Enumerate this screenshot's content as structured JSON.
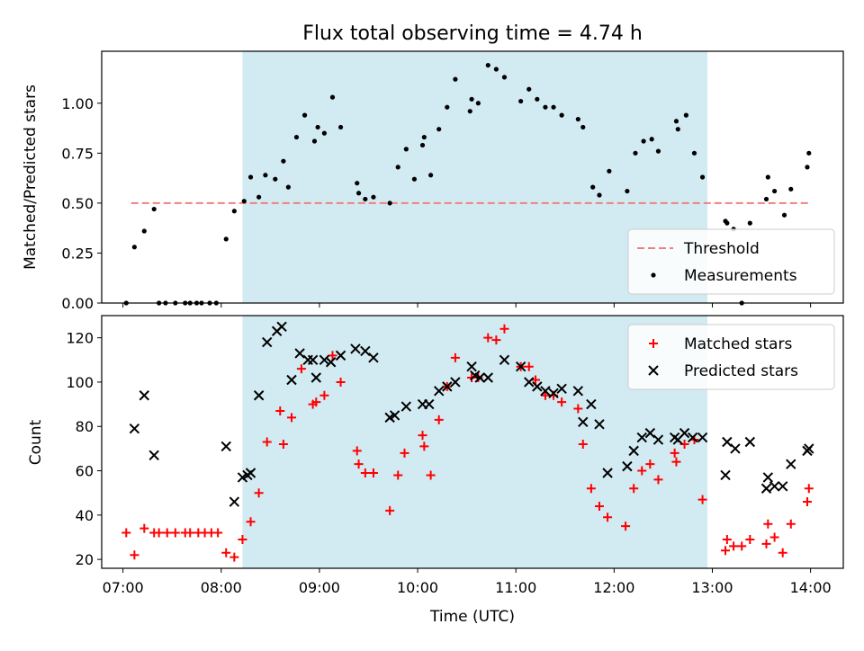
{
  "chart_data": [
    {
      "type": "scatter",
      "title": "Flux total observing time = 4.74 h",
      "ylabel": "Matched/Predicted stars",
      "xlabel": "",
      "xlim": [
        "06:47",
        "14:20"
      ],
      "ylim": [
        0,
        1.26
      ],
      "yticks": [
        "0.00",
        "0.25",
        "0.50",
        "0.75",
        "1.00"
      ],
      "highlight_span": {
        "start": "08:13",
        "end": "12:57",
        "color": "#add8e6"
      },
      "threshold": {
        "name": "Threshold",
        "y": 0.5,
        "x_start": "07:05",
        "x_end": "13:59",
        "color": "#f08080",
        "style": "dashed"
      },
      "legend_position": "lower right",
      "series": [
        {
          "name": "Measurements",
          "color": "#000000",
          "marker": "dot",
          "points": [
            [
              "07:02",
              0.0
            ],
            [
              "07:07",
              0.28
            ],
            [
              "07:13",
              0.36
            ],
            [
              "07:19",
              0.47
            ],
            [
              "07:22",
              0.0
            ],
            [
              "07:26",
              0.0
            ],
            [
              "07:32",
              0.0
            ],
            [
              "07:38",
              0.0
            ],
            [
              "07:41",
              0.0
            ],
            [
              "07:45",
              0.0
            ],
            [
              "07:48",
              0.0
            ],
            [
              "07:53",
              0.0
            ],
            [
              "07:57",
              0.0
            ],
            [
              "08:03",
              0.32
            ],
            [
              "08:08",
              0.46
            ],
            [
              "08:14",
              0.51
            ],
            [
              "08:18",
              0.63
            ],
            [
              "08:23",
              0.53
            ],
            [
              "08:27",
              0.64
            ],
            [
              "08:33",
              0.62
            ],
            [
              "08:38",
              0.71
            ],
            [
              "08:41",
              0.58
            ],
            [
              "08:46",
              0.83
            ],
            [
              "08:51",
              0.94
            ],
            [
              "08:57",
              0.81
            ],
            [
              "08:59",
              0.88
            ],
            [
              "09:03",
              0.85
            ],
            [
              "09:08",
              1.03
            ],
            [
              "09:13",
              0.88
            ],
            [
              "09:23",
              0.6
            ],
            [
              "09:24",
              0.55
            ],
            [
              "09:28",
              0.52
            ],
            [
              "09:33",
              0.53
            ],
            [
              "09:43",
              0.5
            ],
            [
              "09:48",
              0.68
            ],
            [
              "09:53",
              0.77
            ],
            [
              "09:58",
              0.62
            ],
            [
              "10:03",
              0.79
            ],
            [
              "10:04",
              0.83
            ],
            [
              "10:08",
              0.64
            ],
            [
              "10:13",
              0.87
            ],
            [
              "10:18",
              0.98
            ],
            [
              "10:23",
              1.12
            ],
            [
              "10:32",
              0.96
            ],
            [
              "10:33",
              1.02
            ],
            [
              "10:37",
              1.0
            ],
            [
              "10:43",
              1.19
            ],
            [
              "10:48",
              1.17
            ],
            [
              "10:53",
              1.13
            ],
            [
              "11:03",
              1.01
            ],
            [
              "11:08",
              1.07
            ],
            [
              "11:13",
              1.02
            ],
            [
              "11:18",
              0.98
            ],
            [
              "11:23",
              0.98
            ],
            [
              "11:28",
              0.94
            ],
            [
              "11:38",
              0.92
            ],
            [
              "11:41",
              0.88
            ],
            [
              "11:47",
              0.58
            ],
            [
              "11:51",
              0.54
            ],
            [
              "11:57",
              0.66
            ],
            [
              "12:08",
              0.56
            ],
            [
              "12:13",
              0.75
            ],
            [
              "12:18",
              0.81
            ],
            [
              "12:23",
              0.82
            ],
            [
              "12:27",
              0.76
            ],
            [
              "12:38",
              0.91
            ],
            [
              "12:39",
              0.87
            ],
            [
              "12:44",
              0.94
            ],
            [
              "12:49",
              0.75
            ],
            [
              "12:54",
              0.63
            ],
            [
              "13:08",
              0.41
            ],
            [
              "13:09",
              0.4
            ],
            [
              "13:13",
              0.37
            ],
            [
              "13:18",
              0.0
            ],
            [
              "13:23",
              0.4
            ],
            [
              "13:33",
              0.52
            ],
            [
              "13:34",
              0.63
            ],
            [
              "13:38",
              0.56
            ],
            [
              "13:44",
              0.44
            ],
            [
              "13:48",
              0.57
            ],
            [
              "13:58",
              0.68
            ],
            [
              "13:59",
              0.75
            ]
          ]
        }
      ]
    },
    {
      "type": "scatter",
      "title": "",
      "ylabel": "Count",
      "xlabel": "Time (UTC)",
      "xlim": [
        "06:47",
        "14:20"
      ],
      "ylim": [
        16,
        130
      ],
      "yticks": [
        "20",
        "40",
        "60",
        "80",
        "100",
        "120"
      ],
      "xticks": [
        "07:00",
        "08:00",
        "09:00",
        "10:00",
        "11:00",
        "12:00",
        "13:00",
        "14:00"
      ],
      "highlight_span": {
        "start": "08:13",
        "end": "12:57",
        "color": "#add8e6"
      },
      "legend_position": "upper right",
      "series": [
        {
          "name": "Matched stars",
          "color": "#ff0000",
          "marker": "plus",
          "points": [
            [
              "07:02",
              32
            ],
            [
              "07:07",
              22
            ],
            [
              "07:13",
              34
            ],
            [
              "07:19",
              32
            ],
            [
              "07:22",
              32
            ],
            [
              "07:27",
              32
            ],
            [
              "07:32",
              32
            ],
            [
              "07:38",
              32
            ],
            [
              "07:41",
              32
            ],
            [
              "07:46",
              32
            ],
            [
              "07:50",
              32
            ],
            [
              "07:54",
              32
            ],
            [
              "07:58",
              32
            ],
            [
              "08:03",
              23
            ],
            [
              "08:08",
              21
            ],
            [
              "08:13",
              29
            ],
            [
              "08:18",
              37
            ],
            [
              "08:23",
              50
            ],
            [
              "08:28",
              73
            ],
            [
              "08:36",
              87
            ],
            [
              "08:38",
              72
            ],
            [
              "08:43",
              84
            ],
            [
              "08:49",
              106
            ],
            [
              "08:56",
              90
            ],
            [
              "08:58",
              91
            ],
            [
              "09:03",
              94
            ],
            [
              "09:08",
              112
            ],
            [
              "09:13",
              100
            ],
            [
              "09:23",
              69
            ],
            [
              "09:24",
              63
            ],
            [
              "09:28",
              59
            ],
            [
              "09:33",
              59
            ],
            [
              "09:43",
              42
            ],
            [
              "09:48",
              58
            ],
            [
              "09:52",
              68
            ],
            [
              "10:03",
              76
            ],
            [
              "10:04",
              71
            ],
            [
              "10:08",
              58
            ],
            [
              "10:13",
              83
            ],
            [
              "10:18",
              98
            ],
            [
              "10:23",
              111
            ],
            [
              "10:33",
              102
            ],
            [
              "10:37",
              102
            ],
            [
              "10:43",
              120
            ],
            [
              "10:48",
              119
            ],
            [
              "10:53",
              124
            ],
            [
              "11:03",
              107
            ],
            [
              "11:08",
              107
            ],
            [
              "11:12",
              101
            ],
            [
              "11:18",
              94
            ],
            [
              "11:23",
              94
            ],
            [
              "11:28",
              91
            ],
            [
              "11:38",
              88
            ],
            [
              "11:41",
              72
            ],
            [
              "11:46",
              52
            ],
            [
              "11:51",
              44
            ],
            [
              "11:56",
              39
            ],
            [
              "12:07",
              35
            ],
            [
              "12:12",
              52
            ],
            [
              "12:17",
              60
            ],
            [
              "12:22",
              63
            ],
            [
              "12:27",
              56
            ],
            [
              "12:37",
              68
            ],
            [
              "12:38",
              64
            ],
            [
              "12:43",
              72
            ],
            [
              "12:49",
              74
            ],
            [
              "12:54",
              47
            ],
            [
              "13:08",
              24
            ],
            [
              "13:09",
              29
            ],
            [
              "13:13",
              26
            ],
            [
              "13:18",
              26
            ],
            [
              "13:23",
              29
            ],
            [
              "13:33",
              27
            ],
            [
              "13:34",
              36
            ],
            [
              "13:38",
              30
            ],
            [
              "13:43",
              23
            ],
            [
              "13:48",
              36
            ],
            [
              "13:58",
              46
            ],
            [
              "13:59",
              52
            ]
          ]
        },
        {
          "name": "Predicted stars",
          "color": "#000000",
          "marker": "x",
          "points": [
            [
              "07:07",
              79
            ],
            [
              "07:13",
              94
            ],
            [
              "07:19",
              67
            ],
            [
              "08:03",
              71
            ],
            [
              "08:08",
              46
            ],
            [
              "08:13",
              57
            ],
            [
              "08:16",
              58
            ],
            [
              "08:18",
              59
            ],
            [
              "08:23",
              94
            ],
            [
              "08:28",
              118
            ],
            [
              "08:34",
              123
            ],
            [
              "08:37",
              125
            ],
            [
              "08:43",
              101
            ],
            [
              "08:48",
              113
            ],
            [
              "08:53",
              110
            ],
            [
              "08:56",
              110
            ],
            [
              "08:58",
              102
            ],
            [
              "09:03",
              110
            ],
            [
              "09:07",
              109
            ],
            [
              "09:13",
              112
            ],
            [
              "09:22",
              115
            ],
            [
              "09:28",
              114
            ],
            [
              "09:33",
              111
            ],
            [
              "09:43",
              84
            ],
            [
              "09:46",
              85
            ],
            [
              "09:53",
              89
            ],
            [
              "10:03",
              90
            ],
            [
              "10:07",
              90
            ],
            [
              "10:13",
              96
            ],
            [
              "10:18",
              98
            ],
            [
              "10:23",
              100
            ],
            [
              "10:33",
              107
            ],
            [
              "10:35",
              103
            ],
            [
              "10:38",
              102
            ],
            [
              "10:43",
              102
            ],
            [
              "10:53",
              110
            ],
            [
              "11:03",
              107
            ],
            [
              "11:08",
              100
            ],
            [
              "11:13",
              98
            ],
            [
              "11:18",
              96
            ],
            [
              "11:23",
              95
            ],
            [
              "11:28",
              97
            ],
            [
              "11:38",
              96
            ],
            [
              "11:41",
              82
            ],
            [
              "11:46",
              90
            ],
            [
              "11:51",
              81
            ],
            [
              "11:56",
              59
            ],
            [
              "12:08",
              62
            ],
            [
              "12:12",
              69
            ],
            [
              "12:17",
              75
            ],
            [
              "12:22",
              77
            ],
            [
              "12:27",
              74
            ],
            [
              "12:37",
              75
            ],
            [
              "12:39",
              74
            ],
            [
              "12:43",
              77
            ],
            [
              "12:48",
              75
            ],
            [
              "12:54",
              75
            ],
            [
              "13:08",
              58
            ],
            [
              "13:09",
              73
            ],
            [
              "13:14",
              70
            ],
            [
              "13:23",
              73
            ],
            [
              "13:33",
              52
            ],
            [
              "13:34",
              57
            ],
            [
              "13:38",
              53
            ],
            [
              "13:43",
              53
            ],
            [
              "13:48",
              63
            ],
            [
              "13:58",
              69
            ],
            [
              "13:59",
              70
            ]
          ]
        }
      ]
    }
  ]
}
